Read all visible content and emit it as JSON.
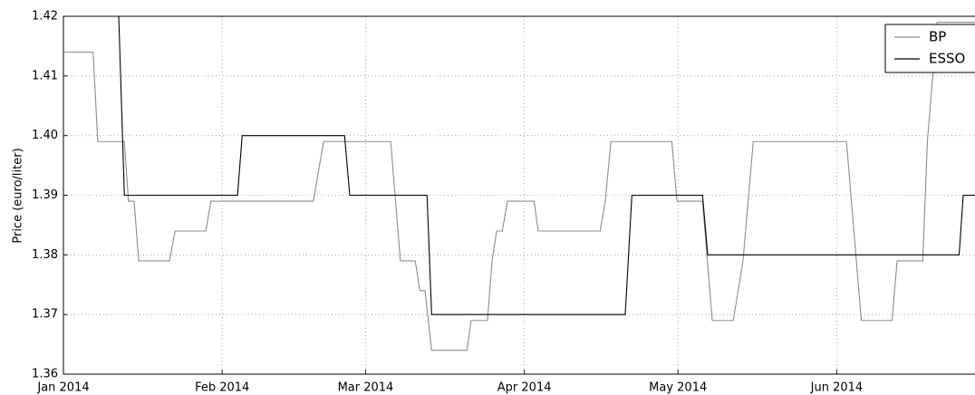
{
  "chart_data": {
    "type": "line",
    "y_label": "Price (euro/liter)",
    "xlim": [
      0,
      178
    ],
    "xticks": [
      {
        "value": 0,
        "label": "Jan 2014"
      },
      {
        "value": 31,
        "label": "Feb 2014"
      },
      {
        "value": 59,
        "label": "Mar 2014"
      },
      {
        "value": 90,
        "label": "Apr 2014"
      },
      {
        "value": 120,
        "label": "May 2014"
      },
      {
        "value": 151,
        "label": "Jun 2014"
      }
    ],
    "ylim": [
      1.36,
      1.42
    ],
    "yticks": [
      1.36,
      1.37,
      1.38,
      1.39,
      {
        "value": 1.4,
        "label": "1.40"
      },
      1.41,
      1.42
    ],
    "grid": true,
    "legend": "upper right",
    "series": [
      {
        "name": "BP",
        "color": "#8c8c8c",
        "x": [
          0,
          5.8,
          6.7,
          11.9,
          12.7,
          13.8,
          14.7,
          20.7,
          21.8,
          27.8,
          28.8,
          48.8,
          50.8,
          63.9,
          65.8,
          68.7,
          69.6,
          70.6,
          71.9,
          78.8,
          79.6,
          82.8,
          83.7,
          84.6,
          85.7,
          86.7,
          91.9,
          92.7,
          104.8,
          105.8,
          106.9,
          118.8,
          119.8,
          124.8,
          126.7,
          130.8,
          132.7,
          134.7,
          152.9,
          155.8,
          161.8,
          162.8,
          167.8,
          168.7,
          170.6,
          178
        ],
        "values": [
          1.414,
          1.414,
          1.399,
          1.399,
          1.389,
          1.389,
          1.379,
          1.379,
          1.384,
          1.384,
          1.389,
          1.389,
          1.399,
          1.399,
          1.379,
          1.379,
          1.374,
          1.374,
          1.364,
          1.364,
          1.369,
          1.369,
          1.379,
          1.384,
          1.384,
          1.389,
          1.389,
          1.384,
          1.384,
          1.389,
          1.399,
          1.399,
          1.389,
          1.389,
          1.369,
          1.369,
          1.379,
          1.399,
          1.399,
          1.369,
          1.369,
          1.379,
          1.379,
          1.399,
          1.419,
          1.419
        ]
      },
      {
        "name": "ESSO",
        "color": "#000000",
        "x": [
          0,
          10.8,
          11.9,
          34,
          34.9,
          54.9,
          55.9,
          71,
          71.9,
          109.7,
          111,
          124.8,
          125.8,
          174.9,
          175.7,
          178
        ],
        "values": [
          1.42,
          1.42,
          1.39,
          1.39,
          1.4,
          1.4,
          1.39,
          1.39,
          1.37,
          1.37,
          1.39,
          1.39,
          1.38,
          1.38,
          1.39,
          1.39
        ]
      }
    ]
  }
}
